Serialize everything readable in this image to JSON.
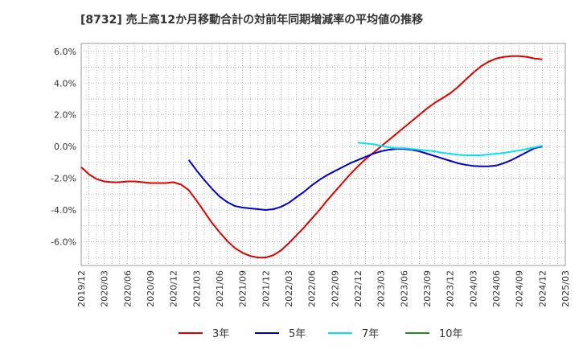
{
  "chart_data": {
    "type": "line",
    "title": "[8732]  売上高12か月移動合計の対前年同期増減率の平均値の推移",
    "xlabel": "",
    "ylabel": "",
    "x_ticks": [
      "2019/12",
      "2020/03",
      "2020/06",
      "2020/09",
      "2020/12",
      "2021/03",
      "2021/06",
      "2021/09",
      "2021/12",
      "2022/03",
      "2022/06",
      "2022/09",
      "2022/12",
      "2023/03",
      "2023/06",
      "2023/09",
      "2023/12",
      "2024/03",
      "2024/06",
      "2024/09",
      "2024/12",
      "2025/03"
    ],
    "y_ticks": [
      "6.0%",
      "4.0%",
      "2.0%",
      "0.0%",
      "-2.0%",
      "-4.0%",
      "-6.0%"
    ],
    "y_tick_values": [
      6,
      4,
      2,
      0,
      -2,
      -4,
      -6
    ],
    "ylim": [
      -7.5,
      6.5
    ],
    "xlim": [
      "2019/12",
      "2025/03"
    ],
    "grid": true,
    "legend_position": "bottom",
    "series": [
      {
        "name": "3年",
        "color": "#e00000",
        "points": [
          [
            "2019/12",
            -1.3
          ],
          [
            "2020/01",
            -1.75
          ],
          [
            "2020/02",
            -2.05
          ],
          [
            "2020/03",
            -2.2
          ],
          [
            "2020/04",
            -2.25
          ],
          [
            "2020/05",
            -2.25
          ],
          [
            "2020/06",
            -2.2
          ],
          [
            "2020/07",
            -2.2
          ],
          [
            "2020/08",
            -2.25
          ],
          [
            "2020/09",
            -2.3
          ],
          [
            "2020/10",
            -2.3
          ],
          [
            "2020/11",
            -2.3
          ],
          [
            "2020/12",
            -2.25
          ],
          [
            "2021/01",
            -2.4
          ],
          [
            "2021/02",
            -2.75
          ],
          [
            "2021/03",
            -3.4
          ],
          [
            "2021/04",
            -4.1
          ],
          [
            "2021/05",
            -4.8
          ],
          [
            "2021/06",
            -5.4
          ],
          [
            "2021/07",
            -5.95
          ],
          [
            "2021/08",
            -6.4
          ],
          [
            "2021/09",
            -6.7
          ],
          [
            "2021/10",
            -6.9
          ],
          [
            "2021/11",
            -7.0
          ],
          [
            "2021/12",
            -7.0
          ],
          [
            "2022/01",
            -6.85
          ],
          [
            "2022/02",
            -6.55
          ],
          [
            "2022/03",
            -6.1
          ],
          [
            "2022/04",
            -5.6
          ],
          [
            "2022/05",
            -5.1
          ],
          [
            "2022/06",
            -4.55
          ],
          [
            "2022/07",
            -4.0
          ],
          [
            "2022/08",
            -3.4
          ],
          [
            "2022/09",
            -2.85
          ],
          [
            "2022/10",
            -2.3
          ],
          [
            "2022/11",
            -1.75
          ],
          [
            "2022/12",
            -1.25
          ],
          [
            "2023/01",
            -0.8
          ],
          [
            "2023/02",
            -0.4
          ],
          [
            "2023/03",
            0.0
          ],
          [
            "2023/04",
            0.4
          ],
          [
            "2023/05",
            0.8
          ],
          [
            "2023/06",
            1.2
          ],
          [
            "2023/07",
            1.6
          ],
          [
            "2023/08",
            2.0
          ],
          [
            "2023/09",
            2.4
          ],
          [
            "2023/10",
            2.75
          ],
          [
            "2023/11",
            3.05
          ],
          [
            "2023/12",
            3.35
          ],
          [
            "2024/01",
            3.75
          ],
          [
            "2024/02",
            4.2
          ],
          [
            "2024/03",
            4.65
          ],
          [
            "2024/04",
            5.05
          ],
          [
            "2024/05",
            5.35
          ],
          [
            "2024/06",
            5.55
          ],
          [
            "2024/07",
            5.65
          ],
          [
            "2024/08",
            5.7
          ],
          [
            "2024/09",
            5.7
          ],
          [
            "2024/10",
            5.65
          ],
          [
            "2024/11",
            5.55
          ],
          [
            "2024/12",
            5.5
          ]
        ]
      },
      {
        "name": "5年",
        "color": "#0000cc",
        "points": [
          [
            "2021/02",
            -0.85
          ],
          [
            "2021/03",
            -1.5
          ],
          [
            "2021/04",
            -2.1
          ],
          [
            "2021/05",
            -2.65
          ],
          [
            "2021/06",
            -3.15
          ],
          [
            "2021/07",
            -3.5
          ],
          [
            "2021/08",
            -3.75
          ],
          [
            "2021/09",
            -3.85
          ],
          [
            "2021/10",
            -3.9
          ],
          [
            "2021/11",
            -3.95
          ],
          [
            "2021/12",
            -4.0
          ],
          [
            "2022/01",
            -3.95
          ],
          [
            "2022/02",
            -3.8
          ],
          [
            "2022/03",
            -3.55
          ],
          [
            "2022/04",
            -3.2
          ],
          [
            "2022/05",
            -2.85
          ],
          [
            "2022/06",
            -2.45
          ],
          [
            "2022/07",
            -2.1
          ],
          [
            "2022/08",
            -1.8
          ],
          [
            "2022/09",
            -1.55
          ],
          [
            "2022/10",
            -1.3
          ],
          [
            "2022/11",
            -1.05
          ],
          [
            "2022/12",
            -0.85
          ],
          [
            "2023/01",
            -0.65
          ],
          [
            "2023/02",
            -0.45
          ],
          [
            "2023/03",
            -0.3
          ],
          [
            "2023/04",
            -0.2
          ],
          [
            "2023/05",
            -0.15
          ],
          [
            "2023/06",
            -0.15
          ],
          [
            "2023/07",
            -0.2
          ],
          [
            "2023/08",
            -0.3
          ],
          [
            "2023/09",
            -0.45
          ],
          [
            "2023/10",
            -0.6
          ],
          [
            "2023/11",
            -0.75
          ],
          [
            "2023/12",
            -0.9
          ],
          [
            "2024/01",
            -1.05
          ],
          [
            "2024/02",
            -1.15
          ],
          [
            "2024/03",
            -1.22
          ],
          [
            "2024/04",
            -1.25
          ],
          [
            "2024/05",
            -1.25
          ],
          [
            "2024/06",
            -1.2
          ],
          [
            "2024/07",
            -1.05
          ],
          [
            "2024/08",
            -0.85
          ],
          [
            "2024/09",
            -0.6
          ],
          [
            "2024/10",
            -0.35
          ],
          [
            "2024/11",
            -0.1
          ],
          [
            "2024/12",
            0.0
          ]
        ]
      },
      {
        "name": "7年",
        "color": "#00e5ee",
        "points": [
          [
            "2022/12",
            0.25
          ],
          [
            "2023/01",
            0.2
          ],
          [
            "2023/02",
            0.15
          ],
          [
            "2023/03",
            0.05
          ],
          [
            "2023/04",
            -0.05
          ],
          [
            "2023/05",
            -0.1
          ],
          [
            "2023/06",
            -0.1
          ],
          [
            "2023/07",
            -0.15
          ],
          [
            "2023/08",
            -0.2
          ],
          [
            "2023/09",
            -0.25
          ],
          [
            "2023/10",
            -0.3
          ],
          [
            "2023/11",
            -0.4
          ],
          [
            "2023/12",
            -0.45
          ],
          [
            "2024/01",
            -0.52
          ],
          [
            "2024/02",
            -0.55
          ],
          [
            "2024/03",
            -0.55
          ],
          [
            "2024/04",
            -0.55
          ],
          [
            "2024/05",
            -0.5
          ],
          [
            "2024/06",
            -0.45
          ],
          [
            "2024/07",
            -0.4
          ],
          [
            "2024/08",
            -0.32
          ],
          [
            "2024/09",
            -0.25
          ],
          [
            "2024/10",
            -0.15
          ],
          [
            "2024/11",
            -0.05
          ],
          [
            "2024/12",
            0.05
          ]
        ]
      },
      {
        "name": "10年",
        "color": "#228b22",
        "points": []
      }
    ]
  }
}
